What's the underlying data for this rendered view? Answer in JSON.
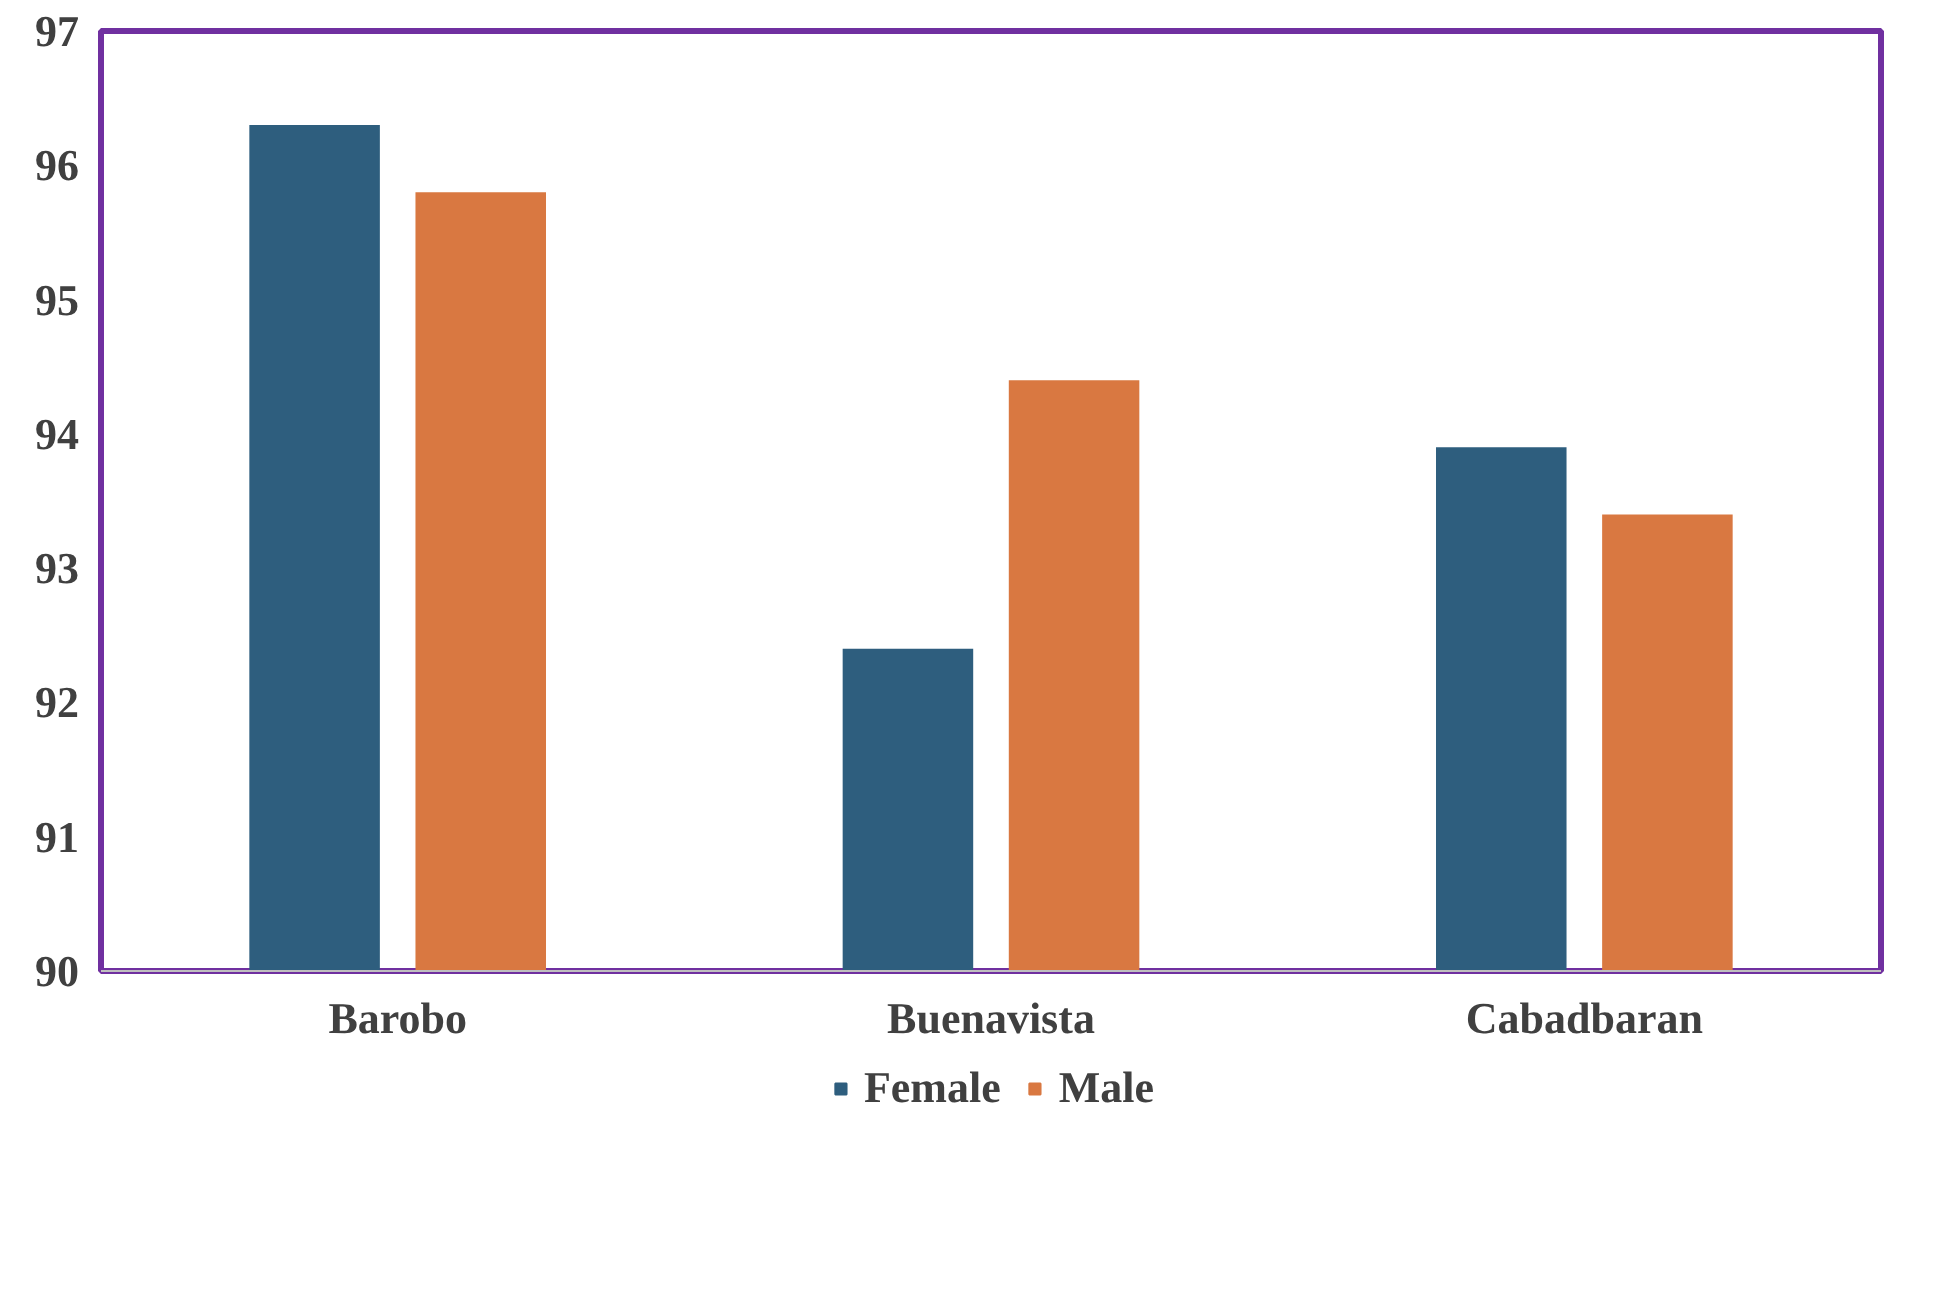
{
  "chart_data": {
    "type": "bar",
    "categories": [
      "Barobo",
      "Buenavista",
      "Cabadbaran"
    ],
    "series": [
      {
        "name": "Female",
        "color": "#2e5e7e",
        "values": [
          96.3,
          92.4,
          93.9
        ]
      },
      {
        "name": "Male",
        "color": "#d97841",
        "values": [
          95.8,
          94.4,
          93.4
        ]
      }
    ],
    "ylim": [
      90,
      97
    ],
    "yticks": [
      90,
      91,
      92,
      93,
      94,
      95,
      96,
      97
    ],
    "grid": false,
    "legend": "bottom"
  }
}
